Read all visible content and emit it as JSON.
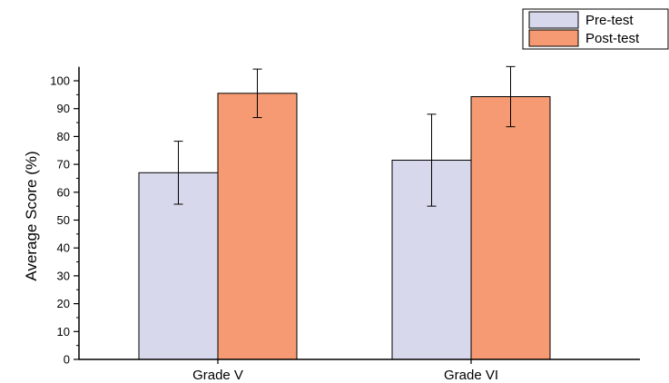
{
  "chart_data": {
    "type": "bar",
    "categories": [
      "Grade V",
      "Grade VI"
    ],
    "series": [
      {
        "name": "Pre-test",
        "values": [
          67,
          71.5
        ],
        "error": [
          11.3,
          16.5
        ],
        "color": "#d8d8ec"
      },
      {
        "name": "Post-test",
        "values": [
          95.5,
          94.3
        ],
        "error": [
          8.7,
          10.8
        ],
        "color": "#f59a72"
      }
    ],
    "title": "",
    "xlabel": "",
    "ylabel": "Average Score (%)",
    "ylim": [
      0,
      105
    ],
    "yticks": [
      "0",
      "10",
      "20",
      "30",
      "40",
      "50",
      "60",
      "70",
      "80",
      "90",
      "100"
    ],
    "grid": false,
    "legend": "top-right"
  }
}
